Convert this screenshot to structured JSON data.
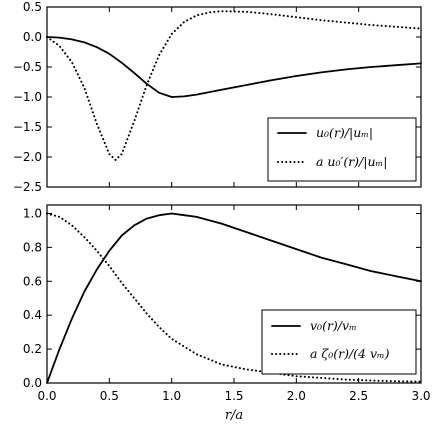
{
  "chart_data": [
    {
      "type": "line",
      "xlim": [
        0.0,
        3.0
      ],
      "ylim": [
        -2.5,
        0.5
      ],
      "xticks": [
        0.0,
        0.5,
        1.0,
        1.5,
        2.0,
        2.5,
        3.0
      ],
      "xtick_labels_shown": false,
      "yticks": [
        0.5,
        0.0,
        -0.5,
        -1.0,
        -1.5,
        -2.0,
        -2.5
      ],
      "ytick_labels": [
        "0.5",
        "0.0",
        "−0.5",
        "−1.0",
        "−1.5",
        "−2.0",
        "−2.5"
      ],
      "grid": false,
      "legend_position": "lower-right",
      "series": [
        {
          "name": "u0(r)/|um|",
          "label": "u₀(r)/|uₘ|",
          "style": "solid",
          "x": [
            0.0,
            0.1,
            0.2,
            0.3,
            0.4,
            0.5,
            0.6,
            0.7,
            0.8,
            0.9,
            1.0,
            1.1,
            1.2,
            1.4,
            1.6,
            1.8,
            2.0,
            2.2,
            2.4,
            2.6,
            2.8,
            3.0
          ],
          "y": [
            0.0,
            -0.01,
            -0.04,
            -0.09,
            -0.17,
            -0.28,
            -0.43,
            -0.6,
            -0.78,
            -0.93,
            -1.0,
            -0.99,
            -0.96,
            -0.88,
            -0.8,
            -0.72,
            -0.65,
            -0.59,
            -0.54,
            -0.5,
            -0.47,
            -0.44
          ]
        },
        {
          "name": "a u0'(r)/|um|",
          "label": "a u₀′(r)/|uₘ|",
          "style": "dotted",
          "x": [
            0.0,
            0.1,
            0.2,
            0.3,
            0.4,
            0.5,
            0.55,
            0.6,
            0.7,
            0.8,
            0.9,
            1.0,
            1.1,
            1.2,
            1.3,
            1.4,
            1.6,
            1.8,
            2.0,
            2.2,
            2.4,
            2.6,
            2.8,
            3.0
          ],
          "y": [
            0.0,
            -0.15,
            -0.42,
            -0.85,
            -1.45,
            -1.95,
            -2.05,
            -1.95,
            -1.4,
            -0.8,
            -0.3,
            0.05,
            0.25,
            0.36,
            0.41,
            0.43,
            0.42,
            0.38,
            0.33,
            0.28,
            0.24,
            0.2,
            0.17,
            0.14
          ]
        }
      ]
    },
    {
      "type": "line",
      "xlim": [
        0.0,
        3.0
      ],
      "ylim": [
        0.0,
        1.05
      ],
      "xticks": [
        0.0,
        0.5,
        1.0,
        1.5,
        2.0,
        2.5,
        3.0
      ],
      "xtick_labels": [
        "0.0",
        "0.5",
        "1.0",
        "1.5",
        "2.0",
        "2.5",
        "3.0"
      ],
      "yticks": [
        0.0,
        0.2,
        0.4,
        0.6,
        0.8,
        1.0
      ],
      "ytick_labels": [
        "0.0",
        "0.2",
        "0.4",
        "0.6",
        "0.8",
        "1.0"
      ],
      "xlabel": "r/a",
      "grid": false,
      "legend_position": "lower-right",
      "series": [
        {
          "name": "v0(r)/vm",
          "label": "v₀(r)/vₘ",
          "style": "solid",
          "x": [
            0.0,
            0.1,
            0.2,
            0.3,
            0.4,
            0.5,
            0.6,
            0.7,
            0.8,
            0.9,
            1.0,
            1.1,
            1.2,
            1.4,
            1.6,
            1.8,
            2.0,
            2.2,
            2.4,
            2.6,
            2.8,
            3.0
          ],
          "y": [
            0.0,
            0.2,
            0.38,
            0.54,
            0.67,
            0.78,
            0.87,
            0.93,
            0.97,
            0.99,
            1.0,
            0.99,
            0.98,
            0.94,
            0.89,
            0.84,
            0.79,
            0.74,
            0.7,
            0.66,
            0.63,
            0.6
          ]
        },
        {
          "name": "a zeta0(r)/(4 vm)",
          "label": "a ζ₀(r)/(4 vₘ)",
          "style": "dotted",
          "x": [
            0.0,
            0.1,
            0.2,
            0.3,
            0.4,
            0.5,
            0.6,
            0.7,
            0.8,
            0.9,
            1.0,
            1.2,
            1.4,
            1.6,
            1.8,
            2.0,
            2.2,
            2.4,
            2.6,
            2.8,
            3.0
          ],
          "y": [
            1.0,
            0.98,
            0.93,
            0.86,
            0.78,
            0.69,
            0.59,
            0.5,
            0.41,
            0.33,
            0.26,
            0.17,
            0.11,
            0.08,
            0.06,
            0.04,
            0.03,
            0.02,
            0.015,
            0.01,
            0.008
          ]
        }
      ]
    }
  ]
}
